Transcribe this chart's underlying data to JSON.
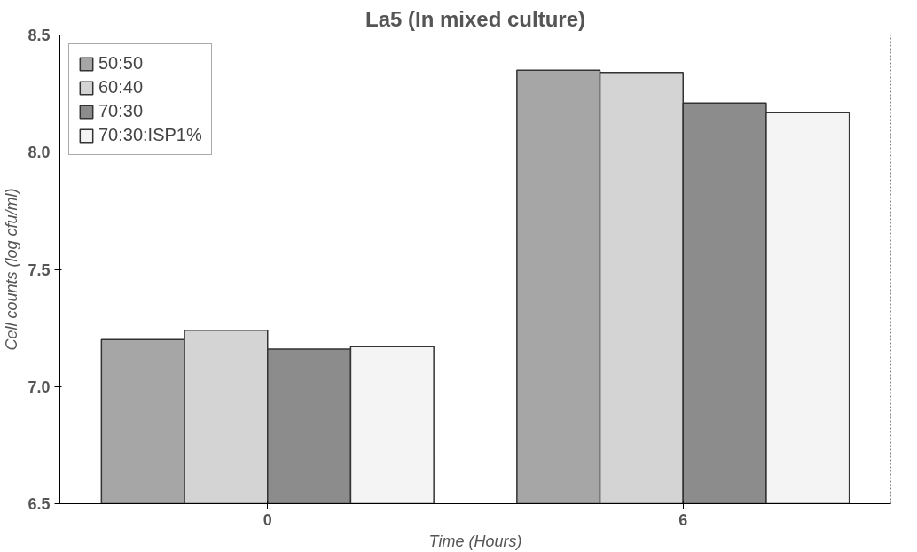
{
  "chart_data": {
    "type": "bar",
    "title": "La5 (In mixed culture)",
    "xlabel": "Time (Hours)",
    "ylabel": "Cell counts (log cfu/ml)",
    "categories": [
      "0",
      "6"
    ],
    "series": [
      {
        "name": "50:50",
        "color": "#a6a6a6",
        "values": [
          7.2,
          8.35
        ]
      },
      {
        "name": "60:40",
        "color": "#d4d4d4",
        "values": [
          7.24,
          8.34
        ]
      },
      {
        "name": "70:30",
        "color": "#8c8c8c",
        "values": [
          7.16,
          8.21
        ]
      },
      {
        "name": "70:30:ISP1%",
        "color": "#f4f4f4",
        "values": [
          7.17,
          8.17
        ]
      }
    ],
    "ylim": [
      6.5,
      8.5
    ],
    "yticks": [
      {
        "value": 6.5,
        "label": "6.5"
      },
      {
        "value": 7.0,
        "label": "7.0"
      },
      {
        "value": 7.5,
        "label": "7.5"
      },
      {
        "value": 8.0,
        "label": "8.0"
      },
      {
        "value": 8.5,
        "label": "8.5"
      }
    ],
    "grid": false,
    "legend": "top left"
  }
}
